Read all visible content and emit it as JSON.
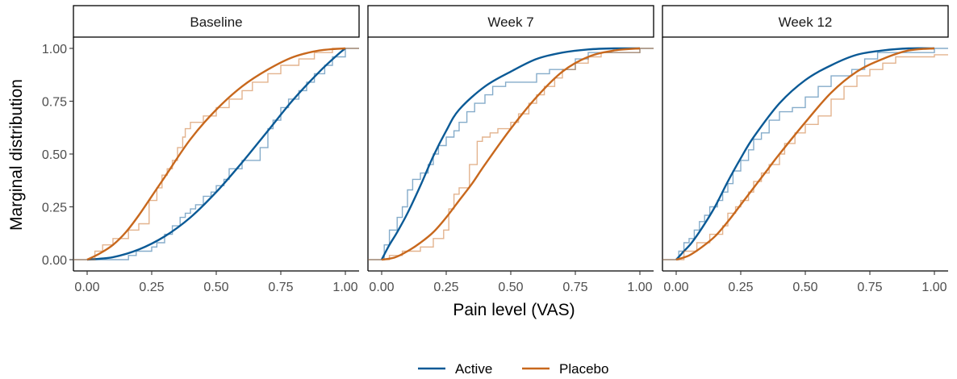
{
  "chart_data": {
    "type": "line",
    "xlabel": "Pain level (VAS)",
    "ylabel": "Marginal distribution",
    "xlim": [
      0,
      1
    ],
    "ylim": [
      0,
      1
    ],
    "x_ticks": [
      "0.00",
      "0.25",
      "0.50",
      "0.75",
      "1.00"
    ],
    "y_ticks": [
      "0.00",
      "0.25",
      "0.50",
      "0.75",
      "1.00"
    ],
    "legend": {
      "position": "bottom",
      "entries": [
        "Active",
        "Placebo"
      ]
    },
    "colors": {
      "Active": "#0b5a96",
      "Placebo": "#c8681d"
    },
    "panels": [
      {
        "title": "Baseline",
        "series": [
          {
            "name": "Active",
            "smooth": [
              [
                0,
                0
              ],
              [
                0.1,
                0.012
              ],
              [
                0.2,
                0.048
              ],
              [
                0.3,
                0.11
              ],
              [
                0.4,
                0.2
              ],
              [
                0.5,
                0.32
              ],
              [
                0.6,
                0.46
              ],
              [
                0.7,
                0.61
              ],
              [
                0.8,
                0.76
              ],
              [
                0.9,
                0.89
              ],
              [
                0.97,
                0.97
              ],
              [
                1,
                1
              ]
            ],
            "ecdf": [
              [
                0,
                0
              ],
              [
                0.16,
                0.02
              ],
              [
                0.19,
                0.04
              ],
              [
                0.25,
                0.06
              ],
              [
                0.27,
                0.08
              ],
              [
                0.3,
                0.12
              ],
              [
                0.33,
                0.16
              ],
              [
                0.36,
                0.2
              ],
              [
                0.38,
                0.22
              ],
              [
                0.4,
                0.24
              ],
              [
                0.42,
                0.26
              ],
              [
                0.45,
                0.3
              ],
              [
                0.48,
                0.32
              ],
              [
                0.5,
                0.35
              ],
              [
                0.53,
                0.38
              ],
              [
                0.55,
                0.43
              ],
              [
                0.6,
                0.47
              ],
              [
                0.65,
                0.47
              ],
              [
                0.67,
                0.53
              ],
              [
                0.7,
                0.62
              ],
              [
                0.72,
                0.66
              ],
              [
                0.75,
                0.72
              ],
              [
                0.78,
                0.76
              ],
              [
                0.82,
                0.8
              ],
              [
                0.85,
                0.84
              ],
              [
                0.88,
                0.88
              ],
              [
                0.92,
                0.92
              ],
              [
                0.95,
                0.96
              ],
              [
                1,
                1
              ]
            ]
          },
          {
            "name": "Placebo",
            "smooth": [
              [
                0,
                0
              ],
              [
                0.05,
                0.03
              ],
              [
                0.1,
                0.07
              ],
              [
                0.15,
                0.13
              ],
              [
                0.2,
                0.21
              ],
              [
                0.25,
                0.3
              ],
              [
                0.3,
                0.39
              ],
              [
                0.4,
                0.57
              ],
              [
                0.5,
                0.71
              ],
              [
                0.6,
                0.82
              ],
              [
                0.7,
                0.9
              ],
              [
                0.8,
                0.96
              ],
              [
                0.9,
                0.99
              ],
              [
                1,
                1
              ]
            ],
            "ecdf": [
              [
                0,
                0
              ],
              [
                0.03,
                0.04
              ],
              [
                0.06,
                0.07
              ],
              [
                0.1,
                0.1
              ],
              [
                0.16,
                0.14
              ],
              [
                0.2,
                0.17
              ],
              [
                0.24,
                0.28
              ],
              [
                0.27,
                0.34
              ],
              [
                0.29,
                0.4
              ],
              [
                0.31,
                0.43
              ],
              [
                0.33,
                0.47
              ],
              [
                0.35,
                0.53
              ],
              [
                0.37,
                0.58
              ],
              [
                0.38,
                0.62
              ],
              [
                0.4,
                0.65
              ],
              [
                0.45,
                0.68
              ],
              [
                0.5,
                0.72
              ],
              [
                0.55,
                0.76
              ],
              [
                0.6,
                0.8
              ],
              [
                0.64,
                0.84
              ],
              [
                0.7,
                0.88
              ],
              [
                0.75,
                0.92
              ],
              [
                0.82,
                0.95
              ],
              [
                0.88,
                0.98
              ],
              [
                0.95,
                1
              ],
              [
                1,
                1
              ]
            ]
          }
        ]
      },
      {
        "title": "Week 7",
        "series": [
          {
            "name": "Active",
            "smooth": [
              [
                0,
                0
              ],
              [
                0.03,
                0.07
              ],
              [
                0.06,
                0.13
              ],
              [
                0.1,
                0.22
              ],
              [
                0.15,
                0.35
              ],
              [
                0.2,
                0.49
              ],
              [
                0.25,
                0.61
              ],
              [
                0.3,
                0.71
              ],
              [
                0.4,
                0.82
              ],
              [
                0.5,
                0.89
              ],
              [
                0.6,
                0.95
              ],
              [
                0.7,
                0.98
              ],
              [
                0.8,
                0.995
              ],
              [
                0.9,
                1
              ],
              [
                1,
                1
              ]
            ],
            "ecdf": [
              [
                0,
                0
              ],
              [
                0.01,
                0.07
              ],
              [
                0.03,
                0.14
              ],
              [
                0.06,
                0.2
              ],
              [
                0.08,
                0.25
              ],
              [
                0.1,
                0.33
              ],
              [
                0.12,
                0.38
              ],
              [
                0.15,
                0.41
              ],
              [
                0.18,
                0.45
              ],
              [
                0.2,
                0.5
              ],
              [
                0.22,
                0.54
              ],
              [
                0.25,
                0.58
              ],
              [
                0.28,
                0.61
              ],
              [
                0.3,
                0.65
              ],
              [
                0.33,
                0.7
              ],
              [
                0.36,
                0.74
              ],
              [
                0.4,
                0.78
              ],
              [
                0.43,
                0.82
              ],
              [
                0.48,
                0.84
              ],
              [
                0.55,
                0.84
              ],
              [
                0.6,
                0.88
              ],
              [
                0.65,
                0.9
              ],
              [
                0.75,
                0.95
              ],
              [
                0.8,
                0.98
              ],
              [
                1,
                1
              ]
            ]
          },
          {
            "name": "Placebo",
            "smooth": [
              [
                0,
                0
              ],
              [
                0.05,
                0.01
              ],
              [
                0.1,
                0.04
              ],
              [
                0.15,
                0.08
              ],
              [
                0.2,
                0.13
              ],
              [
                0.25,
                0.2
              ],
              [
                0.3,
                0.28
              ],
              [
                0.35,
                0.36
              ],
              [
                0.4,
                0.45
              ],
              [
                0.5,
                0.62
              ],
              [
                0.6,
                0.77
              ],
              [
                0.7,
                0.89
              ],
              [
                0.8,
                0.96
              ],
              [
                0.9,
                0.99
              ],
              [
                1,
                1
              ]
            ],
            "ecdf": [
              [
                0,
                0
              ],
              [
                0.03,
                0.02
              ],
              [
                0.08,
                0.04
              ],
              [
                0.15,
                0.06
              ],
              [
                0.2,
                0.1
              ],
              [
                0.24,
                0.14
              ],
              [
                0.26,
                0.24
              ],
              [
                0.28,
                0.31
              ],
              [
                0.3,
                0.34
              ],
              [
                0.34,
                0.45
              ],
              [
                0.37,
                0.56
              ],
              [
                0.39,
                0.58
              ],
              [
                0.42,
                0.6
              ],
              [
                0.45,
                0.62
              ],
              [
                0.5,
                0.65
              ],
              [
                0.53,
                0.69
              ],
              [
                0.57,
                0.74
              ],
              [
                0.6,
                0.78
              ],
              [
                0.63,
                0.82
              ],
              [
                0.67,
                0.86
              ],
              [
                0.7,
                0.9
              ],
              [
                0.75,
                0.93
              ],
              [
                0.8,
                0.96
              ],
              [
                0.85,
                0.98
              ],
              [
                1,
                1
              ]
            ]
          }
        ]
      },
      {
        "title": "Week 12",
        "series": [
          {
            "name": "Active",
            "smooth": [
              [
                0,
                0
              ],
              [
                0.03,
                0.04
              ],
              [
                0.06,
                0.08
              ],
              [
                0.1,
                0.15
              ],
              [
                0.15,
                0.25
              ],
              [
                0.2,
                0.37
              ],
              [
                0.25,
                0.48
              ],
              [
                0.3,
                0.58
              ],
              [
                0.4,
                0.74
              ],
              [
                0.5,
                0.85
              ],
              [
                0.6,
                0.92
              ],
              [
                0.7,
                0.97
              ],
              [
                0.8,
                0.99
              ],
              [
                0.9,
                1
              ],
              [
                1,
                1
              ]
            ],
            "ecdf": [
              [
                0,
                0
              ],
              [
                0.01,
                0.04
              ],
              [
                0.03,
                0.08
              ],
              [
                0.05,
                0.1
              ],
              [
                0.07,
                0.14
              ],
              [
                0.09,
                0.18
              ],
              [
                0.11,
                0.21
              ],
              [
                0.13,
                0.25
              ],
              [
                0.16,
                0.28
              ],
              [
                0.18,
                0.32
              ],
              [
                0.2,
                0.36
              ],
              [
                0.22,
                0.42
              ],
              [
                0.25,
                0.47
              ],
              [
                0.28,
                0.52
              ],
              [
                0.3,
                0.57
              ],
              [
                0.33,
                0.6
              ],
              [
                0.36,
                0.66
              ],
              [
                0.4,
                0.7
              ],
              [
                0.45,
                0.72
              ],
              [
                0.5,
                0.77
              ],
              [
                0.55,
                0.82
              ],
              [
                0.6,
                0.87
              ],
              [
                0.68,
                0.9
              ],
              [
                0.73,
                0.95
              ],
              [
                0.78,
                0.98
              ],
              [
                1,
                1
              ]
            ]
          },
          {
            "name": "Placebo",
            "smooth": [
              [
                0,
                0
              ],
              [
                0.05,
                0.02
              ],
              [
                0.1,
                0.06
              ],
              [
                0.15,
                0.11
              ],
              [
                0.2,
                0.18
              ],
              [
                0.25,
                0.26
              ],
              [
                0.3,
                0.34
              ],
              [
                0.35,
                0.42
              ],
              [
                0.4,
                0.5
              ],
              [
                0.5,
                0.65
              ],
              [
                0.6,
                0.79
              ],
              [
                0.7,
                0.89
              ],
              [
                0.8,
                0.95
              ],
              [
                0.9,
                0.99
              ],
              [
                1,
                1
              ]
            ],
            "ecdf": [
              [
                0,
                0
              ],
              [
                0.03,
                0.04
              ],
              [
                0.08,
                0.08
              ],
              [
                0.13,
                0.12
              ],
              [
                0.18,
                0.16
              ],
              [
                0.2,
                0.22
              ],
              [
                0.23,
                0.25
              ],
              [
                0.25,
                0.28
              ],
              [
                0.28,
                0.32
              ],
              [
                0.3,
                0.37
              ],
              [
                0.33,
                0.41
              ],
              [
                0.36,
                0.45
              ],
              [
                0.4,
                0.5
              ],
              [
                0.42,
                0.55
              ],
              [
                0.46,
                0.6
              ],
              [
                0.5,
                0.64
              ],
              [
                0.55,
                0.68
              ],
              [
                0.6,
                0.76
              ],
              [
                0.65,
                0.82
              ],
              [
                0.7,
                0.87
              ],
              [
                0.75,
                0.9
              ],
              [
                0.8,
                0.93
              ],
              [
                0.85,
                0.96
              ],
              [
                1,
                0.97
              ]
            ]
          }
        ]
      }
    ]
  }
}
